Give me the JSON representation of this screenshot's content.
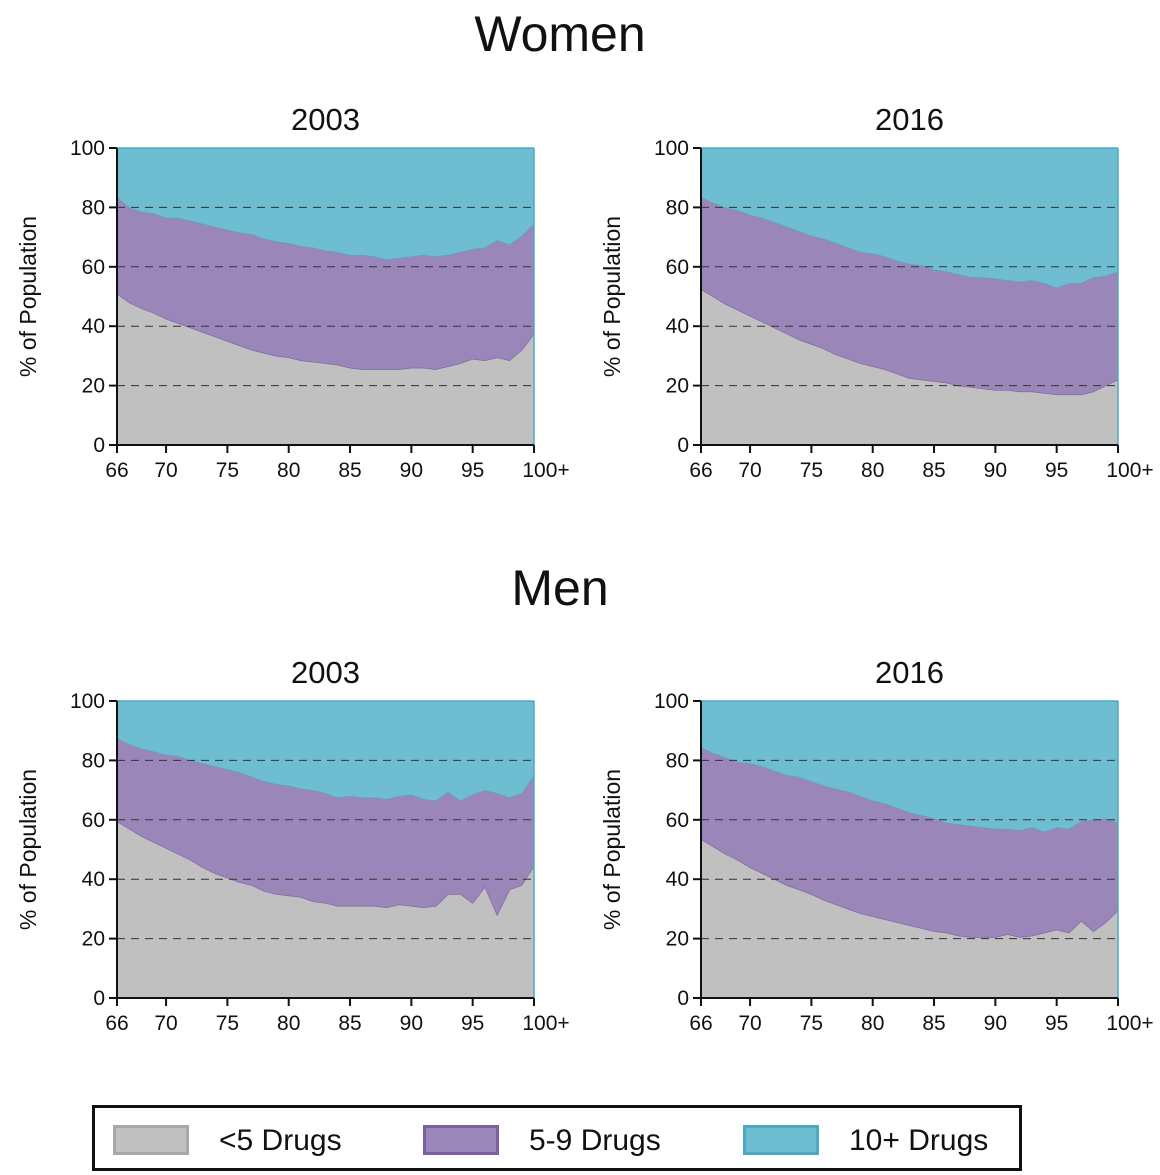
{
  "groups": {
    "women": "Women",
    "men": "Men"
  },
  "colors": {
    "under5": "#c0c0c0",
    "under5_stroke": "#a8a8a8",
    "mid": "#9a86b8",
    "mid_stroke": "#7a5fa5",
    "high": "#6fbdd1",
    "high_stroke": "#4aaac4"
  },
  "legend": {
    "items": [
      {
        "label": "<5 Drugs",
        "color": "#c0c0c0",
        "stroke": "#a8a8a8"
      },
      {
        "label": "5-9 Drugs",
        "color": "#9a86b8",
        "stroke": "#7a5fa5"
      },
      {
        "label": "10+ Drugs",
        "color": "#6fbdd1",
        "stroke": "#4aaac4"
      }
    ],
    "placement": "bottom"
  },
  "chart_data": [
    {
      "type": "area",
      "stacked": true,
      "group": "Women",
      "title": "2003",
      "ylabel": "% of Population",
      "xlabel": "",
      "xlim": [
        66,
        100
      ],
      "ylim": [
        0,
        100
      ],
      "x_ticks": [
        66,
        70,
        75,
        80,
        85,
        90,
        95,
        100
      ],
      "x_tick_labels": [
        "66",
        "70",
        "75",
        "80",
        "85",
        "90",
        "95",
        "100+"
      ],
      "y_ticks": [
        0,
        20,
        40,
        60,
        80,
        100
      ],
      "y_tick_labels": [
        "0",
        "20",
        "40",
        "60",
        "80",
        "100"
      ],
      "grid": "horizontal dashed at 20, 40, 60, 80",
      "x": [
        66,
        67,
        68,
        69,
        70,
        71,
        72,
        73,
        74,
        75,
        76,
        77,
        78,
        79,
        80,
        81,
        82,
        83,
        84,
        85,
        86,
        87,
        88,
        89,
        90,
        91,
        92,
        93,
        94,
        95,
        96,
        97,
        98,
        99,
        100
      ],
      "series": [
        {
          "name": "<5 Drugs",
          "values": [
            51,
            48,
            46,
            44.5,
            42.5,
            41,
            39.5,
            38,
            36.5,
            35,
            33.5,
            32,
            31,
            30,
            29.5,
            28.5,
            28,
            27.5,
            27,
            26,
            25.5,
            25.5,
            25.5,
            25.5,
            26,
            26,
            25.5,
            26.5,
            27.5,
            29,
            28.5,
            29.5,
            28.5,
            32,
            37.5
          ]
        },
        {
          "name": "5-9 Drugs",
          "values": [
            32.5,
            32,
            32.5,
            33.5,
            34,
            35.5,
            36,
            36.5,
            37,
            37.5,
            38,
            39,
            38.5,
            38.5,
            38.5,
            38.5,
            38.5,
            38,
            38,
            38,
            38.5,
            38,
            37,
            37.5,
            37.5,
            38,
            38,
            37.5,
            37.5,
            37,
            38,
            39.5,
            39,
            38.5,
            37
          ]
        },
        {
          "name": "10+ Drugs",
          "values": [
            16.5,
            20,
            21.5,
            22,
            23.5,
            23.5,
            24.5,
            25.5,
            26.5,
            27.5,
            28.5,
            29,
            30.5,
            31.5,
            32,
            33,
            33.5,
            34.5,
            35,
            36,
            36,
            36.5,
            37.5,
            37,
            36.5,
            36,
            36.5,
            36,
            35,
            34,
            33.5,
            31,
            32.5,
            29.5,
            25.5
          ]
        }
      ]
    },
    {
      "type": "area",
      "stacked": true,
      "group": "Women",
      "title": "2016",
      "ylabel": "% of Population",
      "xlabel": "",
      "xlim": [
        66,
        100
      ],
      "ylim": [
        0,
        100
      ],
      "x_ticks": [
        66,
        70,
        75,
        80,
        85,
        90,
        95,
        100
      ],
      "x_tick_labels": [
        "66",
        "70",
        "75",
        "80",
        "85",
        "90",
        "95",
        "100+"
      ],
      "y_ticks": [
        0,
        20,
        40,
        60,
        80,
        100
      ],
      "y_tick_labels": [
        "0",
        "20",
        "40",
        "60",
        "80",
        "100"
      ],
      "grid": "horizontal dashed at 20, 40, 60, 80",
      "x": [
        66,
        67,
        68,
        69,
        70,
        71,
        72,
        73,
        74,
        75,
        76,
        77,
        78,
        79,
        80,
        81,
        82,
        83,
        84,
        85,
        86,
        87,
        88,
        89,
        90,
        91,
        92,
        93,
        94,
        95,
        96,
        97,
        98,
        99,
        100
      ],
      "series": [
        {
          "name": "<5 Drugs",
          "values": [
            52.5,
            50,
            47.5,
            45.5,
            43.5,
            41.5,
            39.5,
            37.5,
            35.5,
            34,
            32.5,
            30.5,
            29,
            27.5,
            26.5,
            25.5,
            24,
            22.5,
            22,
            21.5,
            21,
            20,
            19.5,
            19,
            18.5,
            18.5,
            18,
            18,
            17.5,
            17,
            17,
            17,
            18,
            20,
            22
          ]
        },
        {
          "name": "5-9 Drugs",
          "values": [
            31,
            31.5,
            32.5,
            33.5,
            34,
            35,
            35.5,
            36,
            36.5,
            36.5,
            37,
            37.5,
            37.5,
            37.5,
            38,
            38,
            38,
            38.5,
            38.5,
            37.5,
            37.5,
            37.5,
            37,
            37.5,
            37.5,
            37,
            37,
            37.5,
            37,
            36,
            37.5,
            37.5,
            38.5,
            37,
            36.5
          ]
        },
        {
          "name": "10+ Drugs",
          "values": [
            16.5,
            18.5,
            20,
            21,
            22.5,
            23.5,
            25,
            26.5,
            28,
            29.5,
            30.5,
            32,
            33.5,
            35,
            35.5,
            36.5,
            38,
            39,
            39.5,
            41,
            41.5,
            42.5,
            43.5,
            43.5,
            44,
            44.5,
            45,
            44.5,
            45.5,
            47,
            45.5,
            45.5,
            43.5,
            43,
            41.5
          ]
        }
      ]
    },
    {
      "type": "area",
      "stacked": true,
      "group": "Men",
      "title": "2003",
      "ylabel": "% of Population",
      "xlabel": "",
      "xlim": [
        66,
        100
      ],
      "ylim": [
        0,
        100
      ],
      "x_ticks": [
        66,
        70,
        75,
        80,
        85,
        90,
        95,
        100
      ],
      "x_tick_labels": [
        "66",
        "70",
        "75",
        "80",
        "85",
        "90",
        "95",
        "100+"
      ],
      "y_ticks": [
        0,
        20,
        40,
        60,
        80,
        100
      ],
      "y_tick_labels": [
        "0",
        "20",
        "40",
        "60",
        "80",
        "100"
      ],
      "grid": "horizontal dashed at 20, 40, 60, 80",
      "x": [
        66,
        67,
        68,
        69,
        70,
        71,
        72,
        73,
        74,
        75,
        76,
        77,
        78,
        79,
        80,
        81,
        82,
        83,
        84,
        85,
        86,
        87,
        88,
        89,
        90,
        91,
        92,
        93,
        94,
        95,
        96,
        97,
        98,
        99,
        100
      ],
      "series": [
        {
          "name": "<5 Drugs",
          "values": [
            59.5,
            57,
            54.5,
            52.5,
            50.5,
            48.5,
            46.5,
            44,
            42,
            40.5,
            39,
            38,
            36,
            35,
            34.5,
            34,
            32.5,
            32,
            31,
            31,
            31,
            31,
            30.5,
            31.5,
            31,
            30.5,
            31,
            35,
            35,
            32,
            37.5,
            28,
            36.5,
            38,
            44.5
          ]
        },
        {
          "name": "5-9 Drugs",
          "values": [
            28,
            28.5,
            29.5,
            30.5,
            31.5,
            33,
            33.5,
            35,
            36,
            36.5,
            37,
            36.5,
            37,
            37,
            37,
            36.5,
            37.5,
            37,
            36.5,
            37,
            36.5,
            36.5,
            36.5,
            36.5,
            37.5,
            36.5,
            35.5,
            34.5,
            31.5,
            36.5,
            32.5,
            41,
            31,
            31,
            30.5
          ]
        },
        {
          "name": "10+ Drugs",
          "values": [
            12.5,
            14.5,
            16,
            17,
            18,
            18.5,
            20,
            21,
            22,
            23,
            24,
            25.5,
            27,
            28,
            28.5,
            29.5,
            30,
            31,
            32.5,
            32,
            32.5,
            32.5,
            33,
            32,
            31.5,
            33,
            33.5,
            30.5,
            33.5,
            31.5,
            30,
            31,
            32.5,
            31,
            25
          ]
        }
      ]
    },
    {
      "type": "area",
      "stacked": true,
      "group": "Men",
      "title": "2016",
      "ylabel": "% of Population",
      "xlabel": "",
      "xlim": [
        66,
        100
      ],
      "ylim": [
        0,
        100
      ],
      "x_ticks": [
        66,
        70,
        75,
        80,
        85,
        90,
        95,
        100
      ],
      "x_tick_labels": [
        "66",
        "70",
        "75",
        "80",
        "85",
        "90",
        "95",
        "100+"
      ],
      "y_ticks": [
        0,
        20,
        40,
        60,
        80,
        100
      ],
      "y_tick_labels": [
        "0",
        "20",
        "40",
        "60",
        "80",
        "100"
      ],
      "grid": "horizontal dashed at 20, 40, 60, 80",
      "x": [
        66,
        67,
        68,
        69,
        70,
        71,
        72,
        73,
        74,
        75,
        76,
        77,
        78,
        79,
        80,
        81,
        82,
        83,
        84,
        85,
        86,
        87,
        88,
        89,
        90,
        91,
        92,
        93,
        94,
        95,
        96,
        97,
        98,
        99,
        100
      ],
      "series": [
        {
          "name": "<5 Drugs",
          "values": [
            53.5,
            51,
            48.5,
            46.5,
            44,
            42,
            40,
            38,
            36.5,
            35,
            33,
            31.5,
            30,
            28.5,
            27.5,
            26.5,
            25.5,
            24.5,
            23.5,
            22.5,
            22,
            21,
            20.5,
            20.5,
            20.5,
            21.5,
            20.5,
            21,
            22,
            23,
            22,
            26,
            22.5,
            25.5,
            29.5
          ]
        },
        {
          "name": "5-9 Drugs",
          "values": [
            31,
            31.5,
            32.5,
            33,
            35,
            36,
            36.5,
            37,
            38,
            38,
            38.5,
            39,
            39.5,
            39.5,
            39,
            39,
            38.5,
            38,
            38,
            38,
            37,
            37.5,
            37.5,
            37,
            36.5,
            35.5,
            36,
            36.5,
            34,
            34.5,
            35,
            33.5,
            37.5,
            35,
            29.5
          ]
        },
        {
          "name": "10+ Drugs",
          "values": [
            15.5,
            17.5,
            19,
            20.5,
            21,
            22,
            23.5,
            25,
            25.5,
            27,
            28.5,
            29.5,
            30.5,
            32,
            33.5,
            34.5,
            36,
            37.5,
            38.5,
            39.5,
            41,
            41.5,
            42,
            42.5,
            43,
            43,
            43.5,
            42.5,
            44,
            42.5,
            43,
            40.5,
            40,
            39.5,
            41
          ]
        }
      ]
    }
  ]
}
